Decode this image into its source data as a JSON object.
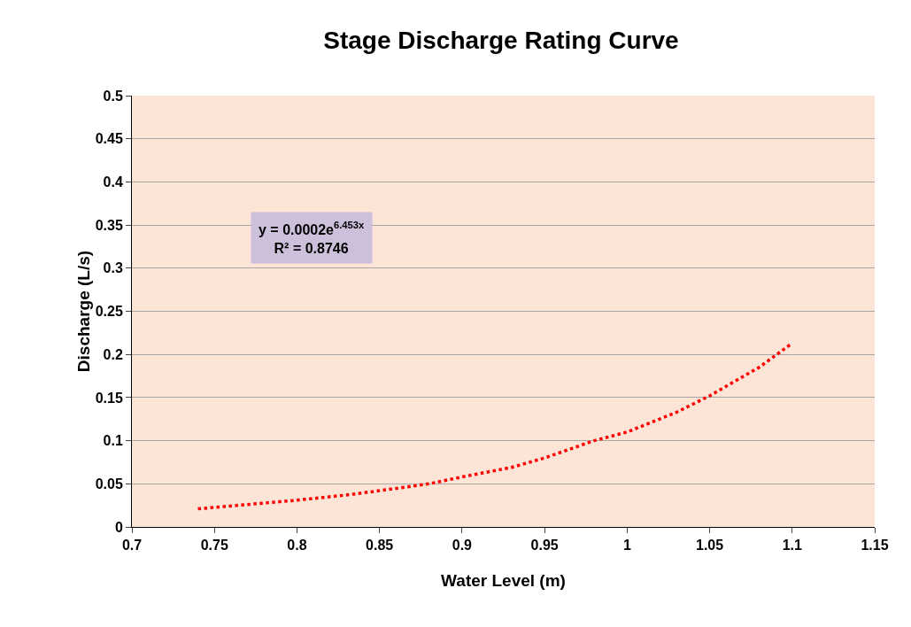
{
  "chart_data": {
    "type": "line",
    "title": "Stage Discharge Rating Curve",
    "xlabel": "Water Level (m)",
    "ylabel": "Discharge (L/s)",
    "annotations": [
      "y = 0.0002e$^{6.453x}$",
      "R² = 0.8746"
    ],
    "series": [
      {
        "color": "#ff0000",
        "x": [
          0.74,
          0.77,
          0.8,
          0.83,
          0.85,
          0.88,
          0.9,
          0.93,
          0.95,
          0.98,
          1.0,
          1.03,
          1.05,
          1.08,
          1.1
        ],
        "values": [
          0.021,
          0.026,
          0.031,
          0.037,
          0.042,
          0.05,
          0.058,
          0.069,
          0.08,
          0.1,
          0.11,
          0.133,
          0.152,
          0.185,
          0.213
        ]
      }
    ],
    "xlim": [
      0.7,
      1.15
    ],
    "xticks": [
      0.7,
      0.75,
      0.8,
      0.85,
      0.9,
      0.95,
      1,
      1.05,
      1.1,
      1.15
    ],
    "ylim": [
      0,
      0.5
    ],
    "yticks": [
      0,
      0.05,
      0.1,
      0.15,
      0.2,
      0.25,
      0.3,
      0.35,
      0.4,
      0.45,
      0.5
    ],
    "grid": "y",
    "marker": "none",
    "line_style": "dotted"
  }
}
